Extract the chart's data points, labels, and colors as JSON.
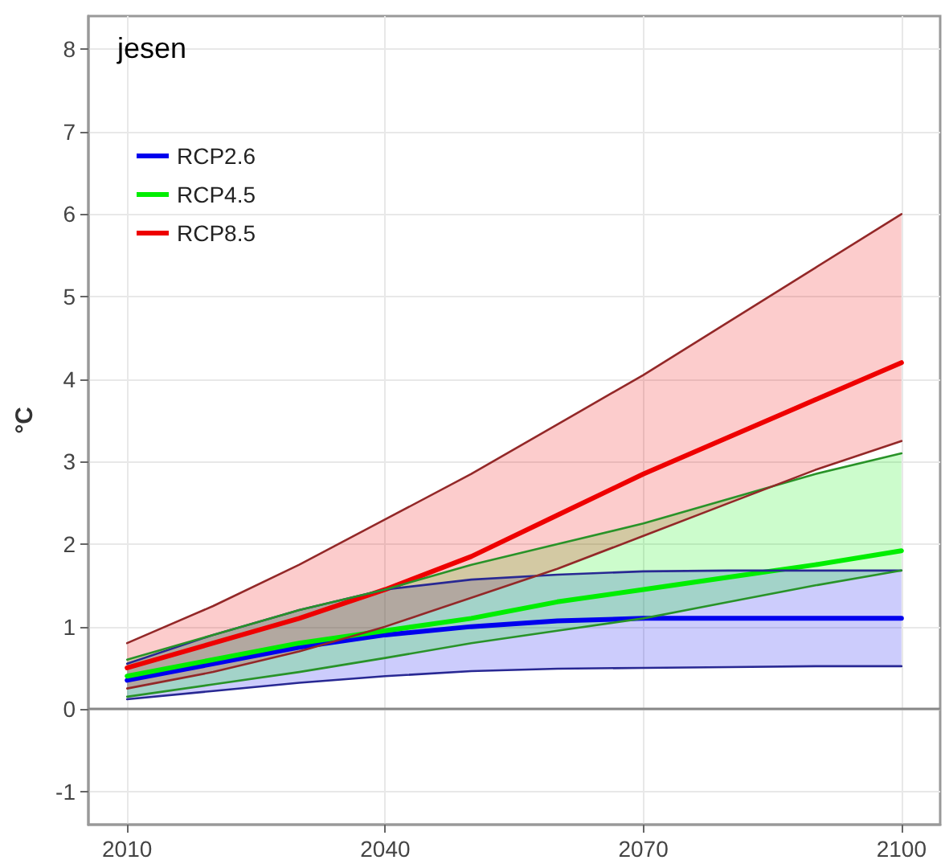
{
  "chart_data": {
    "type": "line",
    "title": "jesen",
    "ylabel": "°C",
    "x": [
      2010,
      2020,
      2030,
      2040,
      2050,
      2060,
      2070,
      2080,
      2090,
      2100
    ],
    "series": [
      {
        "name": "RCP2.6",
        "color": "#0000ee",
        "values": [
          0.35,
          0.55,
          0.75,
          0.9,
          1.0,
          1.07,
          1.1,
          1.1,
          1.1,
          1.1
        ],
        "lower": [
          0.12,
          0.22,
          0.32,
          0.4,
          0.46,
          0.49,
          0.5,
          0.51,
          0.52,
          0.52
        ],
        "upper": [
          0.55,
          0.9,
          1.2,
          1.45,
          1.57,
          1.63,
          1.67,
          1.68,
          1.68,
          1.68
        ]
      },
      {
        "name": "RCP4.5",
        "color": "#00ee00",
        "values": [
          0.4,
          0.6,
          0.8,
          0.95,
          1.1,
          1.3,
          1.45,
          1.6,
          1.75,
          1.92
        ],
        "lower": [
          0.15,
          0.3,
          0.45,
          0.62,
          0.8,
          0.95,
          1.1,
          1.3,
          1.5,
          1.68
        ],
        "upper": [
          0.6,
          0.9,
          1.2,
          1.45,
          1.75,
          2.0,
          2.25,
          2.55,
          2.85,
          3.1
        ]
      },
      {
        "name": "RCP8.5",
        "color": "#ee0000",
        "values": [
          0.5,
          0.8,
          1.1,
          1.45,
          1.85,
          2.35,
          2.85,
          3.3,
          3.75,
          4.2
        ],
        "lower": [
          0.25,
          0.45,
          0.7,
          1.0,
          1.35,
          1.7,
          2.1,
          2.5,
          2.9,
          3.25
        ],
        "upper": [
          0.8,
          1.25,
          1.75,
          2.3,
          2.85,
          3.45,
          4.05,
          4.7,
          5.35,
          6.0
        ]
      },
      {
        "color": "#282893",
        "values": [
          0.12,
          0.22,
          0.32,
          0.4,
          0.46,
          0.49,
          0.5,
          0.51,
          0.52,
          0.52
        ]
      },
      {
        "color": "#282893",
        "values": [
          0.55,
          0.9,
          1.2,
          1.45,
          1.57,
          1.63,
          1.67,
          1.68,
          1.68,
          1.68
        ]
      },
      {
        "color": "#289328",
        "values": [
          0.15,
          0.3,
          0.45,
          0.62,
          0.8,
          0.95,
          1.1,
          1.3,
          1.5,
          1.68
        ]
      },
      {
        "color": "#289328",
        "values": [
          0.6,
          0.9,
          1.2,
          1.45,
          1.75,
          2.0,
          2.25,
          2.55,
          2.85,
          3.1
        ]
      },
      {
        "color": "#932828",
        "values": [
          0.25,
          0.45,
          0.7,
          1.0,
          1.35,
          1.7,
          2.1,
          2.5,
          2.9,
          3.25
        ]
      },
      {
        "color": "#932828",
        "values": [
          0.8,
          1.25,
          1.75,
          2.3,
          2.85,
          3.45,
          4.05,
          4.7,
          5.35,
          6.0
        ]
      }
    ],
    "xlim": [
      2005.5,
      2104.5
    ],
    "xticks": [
      2010,
      2040,
      2070,
      2100
    ],
    "ylim": [
      -1.4,
      8.4
    ],
    "yticks": [
      -1,
      0,
      1,
      2,
      3,
      4,
      5,
      6,
      7,
      8
    ],
    "ref_lines": [
      {
        "axis": "y",
        "value": 0,
        "color": "#888888"
      }
    ],
    "grid": true,
    "legend": "top left",
    "marker": "none",
    "line_style": "solid"
  }
}
